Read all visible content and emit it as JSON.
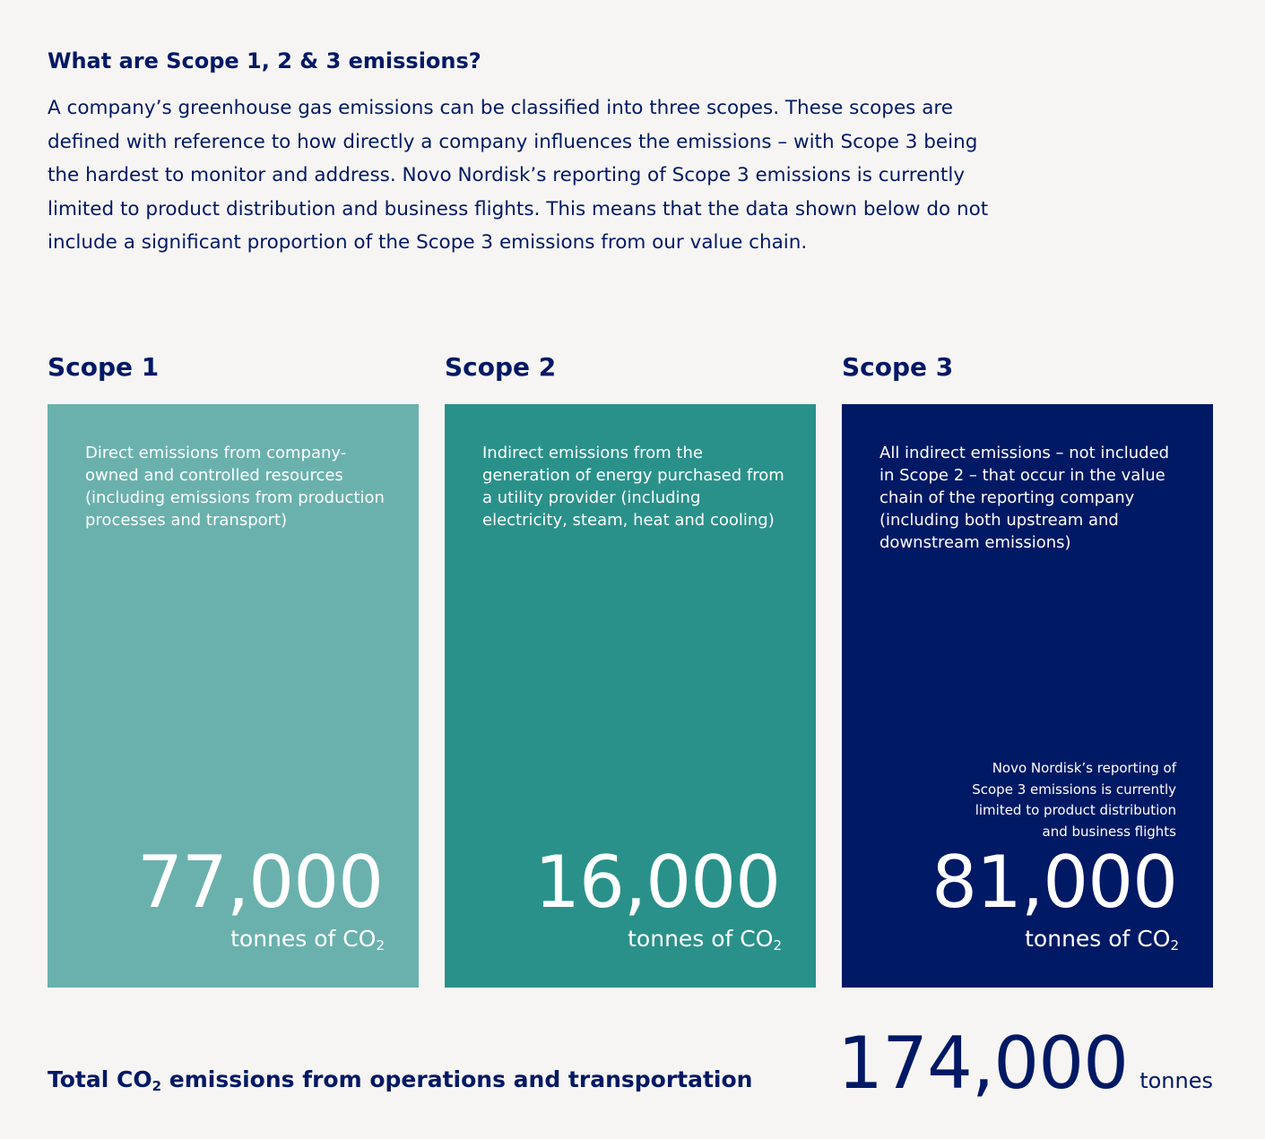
{
  "intro": {
    "heading": "What are Scope 1, 2 & 3 emissions?",
    "text": "A company’s greenhouse gas emissions can be classified into three scopes. These scopes are defined with reference to how directly a company influences the emissions – with Scope 3 being the hardest to monitor and address. Novo Nordisk’s reporting of Scope 3 emissions is currently limited to product distribution and business flights. This means that the data shown below do not include a significant proportion of the Scope 3 emissions from our value chain."
  },
  "scopes": [
    {
      "title": "Scope 1",
      "description": "Direct emissions from company-owned and controlled resources (including emissions from production processes and transport)",
      "value": "77,000",
      "unit_prefix": "tonnes of CO",
      "unit_sub": "2",
      "color": "#6ab1ad"
    },
    {
      "title": "Scope 2",
      "description": "Indirect emissions from the generation of energy purchased from a utility provider (including electricity, steam, heat and cooling)",
      "value": "16,000",
      "unit_prefix": "tonnes of CO",
      "unit_sub": "2",
      "color": "#2a918a"
    },
    {
      "title": "Scope 3",
      "description": "All indirect emissions – not included in Scope 2 – that occur in the value chain of the reporting company (including both upstream and downstream emissions)",
      "note": "Novo Nordisk’s reporting of Scope 3 emissions is currently limited to product distribution and business flights",
      "value": "81,000",
      "unit_prefix": "tonnes of CO",
      "unit_sub": "2",
      "color": "#001965"
    }
  ],
  "total": {
    "label_prefix": "Total CO",
    "label_sub": "2",
    "label_suffix": " emissions from operations and transportation",
    "value": "174,000",
    "unit": "tonnes"
  }
}
